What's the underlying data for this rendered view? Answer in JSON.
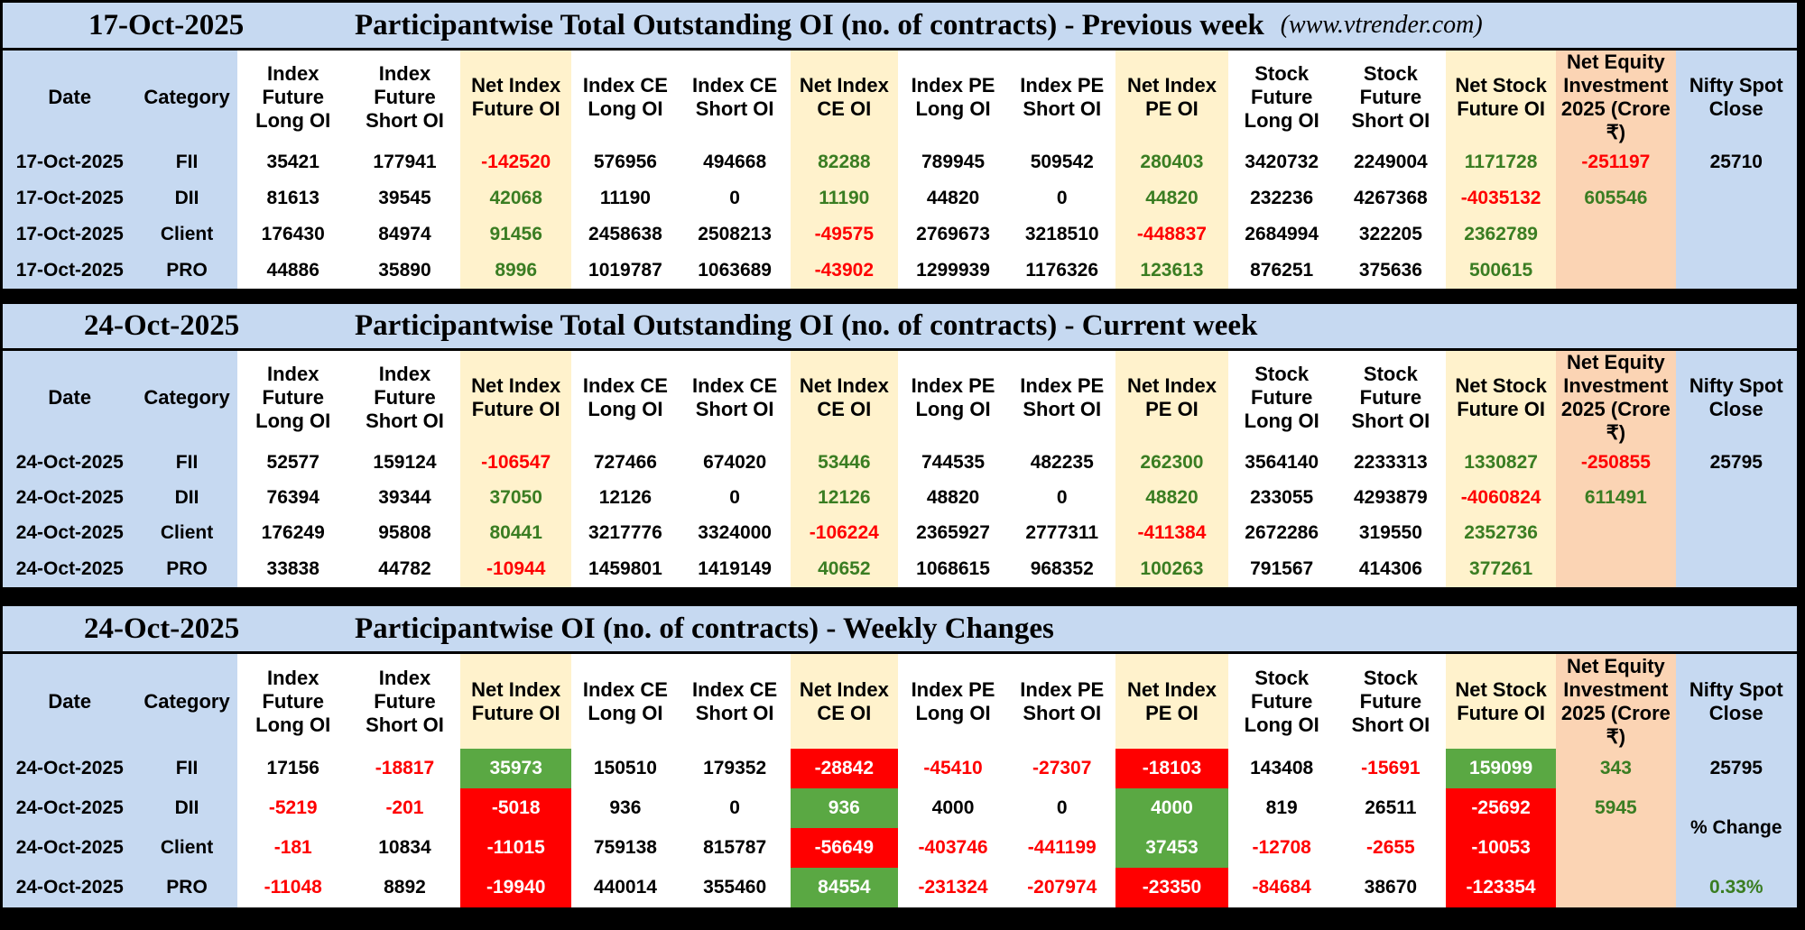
{
  "site": "(www.vtrender.com)",
  "columns": [
    "Date",
    "Category",
    "Index Future Long OI",
    "Index Future Short OI",
    "Net Index Future OI",
    "Index CE Long OI",
    "Index CE Short OI",
    "Net Index CE OI",
    "Index PE Long OI",
    "Index PE Short OI",
    "Net Index PE OI",
    "Stock Future Long OI",
    "Stock Future Short OI",
    "Net Stock Future OI",
    "Net Equity Investment 2025 (Crore ₹)",
    "Nifty Spot Close"
  ],
  "sections": [
    {
      "date": "17-Oct-2025",
      "title": "Participantwise Total Outstanding OI (no. of contracts) - Previous week",
      "rows": [
        [
          "17-Oct-2025",
          "FII",
          "35421",
          "177941",
          "-142520",
          "576956",
          "494668",
          "82288",
          "789945",
          "509542",
          "280403",
          "3420732",
          "2249004",
          "1171728",
          "-251197",
          "25710"
        ],
        [
          "17-Oct-2025",
          "DII",
          "81613",
          "39545",
          "42068",
          "11190",
          "0",
          "11190",
          "44820",
          "0",
          "44820",
          "232236",
          "4267368",
          "-4035132",
          "605546",
          ""
        ],
        [
          "17-Oct-2025",
          "Client",
          "176430",
          "84974",
          "91456",
          "2458638",
          "2508213",
          "-49575",
          "2769673",
          "3218510",
          "-448837",
          "2684994",
          "322205",
          "2362789",
          "",
          ""
        ],
        [
          "17-Oct-2025",
          "PRO",
          "44886",
          "35890",
          "8996",
          "1019787",
          "1063689",
          "-43902",
          "1299939",
          "1176326",
          "123613",
          "876251",
          "375636",
          "500615",
          "",
          ""
        ]
      ]
    },
    {
      "date": "24-Oct-2025",
      "title": "Participantwise Total Outstanding OI (no. of contracts) - Current week",
      "rows": [
        [
          "24-Oct-2025",
          "FII",
          "52577",
          "159124",
          "-106547",
          "727466",
          "674020",
          "53446",
          "744535",
          "482235",
          "262300",
          "3564140",
          "2233313",
          "1330827",
          "-250855",
          "25795"
        ],
        [
          "24-Oct-2025",
          "DII",
          "76394",
          "39344",
          "37050",
          "12126",
          "0",
          "12126",
          "48820",
          "0",
          "48820",
          "233055",
          "4293879",
          "-4060824",
          "611491",
          ""
        ],
        [
          "24-Oct-2025",
          "Client",
          "176249",
          "95808",
          "80441",
          "3217776",
          "3324000",
          "-106224",
          "2365927",
          "2777311",
          "-411384",
          "2672286",
          "319550",
          "2352736",
          "",
          ""
        ],
        [
          "24-Oct-2025",
          "PRO",
          "33838",
          "44782",
          "-10944",
          "1459801",
          "1419149",
          "40652",
          "1068615",
          "968352",
          "100263",
          "791567",
          "414306",
          "377261",
          "",
          ""
        ]
      ]
    },
    {
      "date": "24-Oct-2025",
      "title": "Participantwise OI (no. of contracts) - Weekly Changes",
      "rows": [
        [
          "24-Oct-2025",
          "FII",
          "17156",
          "-18817",
          "35973",
          "150510",
          "179352",
          "-28842",
          "-45410",
          "-27307",
          "-18103",
          "143408",
          "-15691",
          "159099",
          "343",
          "25795"
        ],
        [
          "24-Oct-2025",
          "DII",
          "-5219",
          "-201",
          "-5018",
          "936",
          "0",
          "936",
          "4000",
          "0",
          "4000",
          "819",
          "26511",
          "-25692",
          "5945",
          ""
        ],
        [
          "24-Oct-2025",
          "Client",
          "-181",
          "10834",
          "-11015",
          "759138",
          "815787",
          "-56649",
          "-403746",
          "-441199",
          "37453",
          "-12708",
          "-2655",
          "-10053",
          "",
          ""
        ],
        [
          "24-Oct-2025",
          "PRO",
          "-11048",
          "8892",
          "-19940",
          "440014",
          "355460",
          "84554",
          "-231324",
          "-207974",
          "-23350",
          "-84684",
          "38670",
          "-123354",
          "",
          ""
        ]
      ],
      "nifty_note": "% Change",
      "nifty_pct": "0.33%"
    }
  ],
  "colors": {
    "header_blue": "#c6d9f1",
    "net_cream": "#fff2cc",
    "equity_peach": "#fbd4b4",
    "positive_green": "#3a7d22",
    "negative_red": "#ff0000",
    "fill_green": "#5aa843",
    "fill_red": "#ff0000"
  }
}
